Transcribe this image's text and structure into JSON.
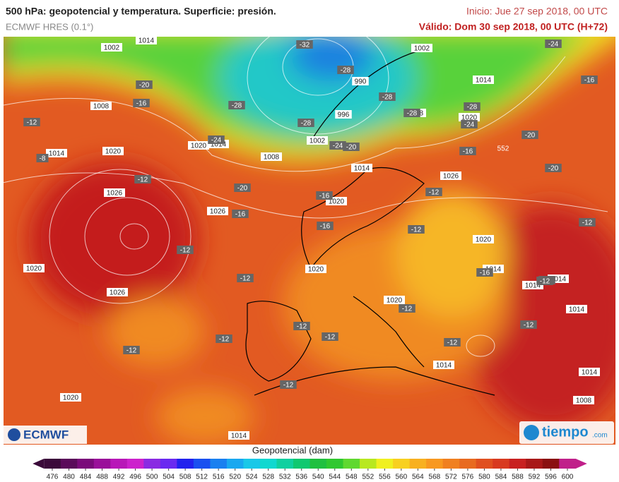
{
  "header": {
    "title": "500 hPa: geopotencial y temperatura. Superficie: presión.",
    "subtitle": "ECMWF HRES (0.1°)",
    "init": "Inicio: Jue 27 sep 2018, 00 UTC",
    "valid": "Válido: Dom 30 sep 2018, 00 UTC (H+72)"
  },
  "map": {
    "pressure_labels": [
      "1002",
      "1014",
      "1008",
      "1014",
      "1020",
      "1026",
      "1020",
      "1014",
      "1026",
      "1008",
      "1002",
      "996",
      "990",
      "1014",
      "1020",
      "1020",
      "1020",
      "1026",
      "1020",
      "1020",
      "1014",
      "1014",
      "1014",
      "1014",
      "1014",
      "1014",
      "1008",
      "1020",
      "1014",
      "1026",
      "1008",
      "1014",
      "1002",
      "1020"
    ],
    "temperature_labels": [
      "-32",
      "-28",
      "-28",
      "-28",
      "-28",
      "-28",
      "-28",
      "-24",
      "-24",
      "-24",
      "-24",
      "-20",
      "-20",
      "-16",
      "-12",
      "-8",
      "-12",
      "-20",
      "-16",
      "-16",
      "-12",
      "-16",
      "-20",
      "-20",
      "-16",
      "-16",
      "-12",
      "-12",
      "-12",
      "-16",
      "-12",
      "-12",
      "-12",
      "-12",
      "-12",
      "-12",
      "-12",
      "-12",
      "-12",
      "-12",
      "-12"
    ],
    "contour_label": "552"
  },
  "logos": {
    "left": "ECMWF",
    "right": "tiempo",
    "right_suffix": ".com"
  },
  "colorbar": {
    "label": "Geopotencial (dam)",
    "ticks": [
      476,
      480,
      484,
      488,
      492,
      496,
      500,
      504,
      508,
      512,
      516,
      520,
      524,
      528,
      532,
      536,
      540,
      544,
      548,
      552,
      556,
      560,
      564,
      568,
      572,
      576,
      580,
      584,
      588,
      592,
      596,
      600
    ],
    "colors": [
      "#3b0a3a",
      "#5a0a5a",
      "#7a0a7a",
      "#9a109a",
      "#b818b8",
      "#cc22cc",
      "#8a2be2",
      "#6a2af0",
      "#2222ee",
      "#1a50f0",
      "#1a80f0",
      "#1aa8f0",
      "#1ac8e8",
      "#10d8d0",
      "#10d0a0",
      "#10c870",
      "#20c040",
      "#30c830",
      "#60d830",
      "#b8e820",
      "#f0f020",
      "#f8d020",
      "#f8b020",
      "#f89820",
      "#f08020",
      "#e86a20",
      "#e05020",
      "#d83a20",
      "#c82020",
      "#a81818",
      "#8a1010",
      "#c0208a"
    ]
  }
}
